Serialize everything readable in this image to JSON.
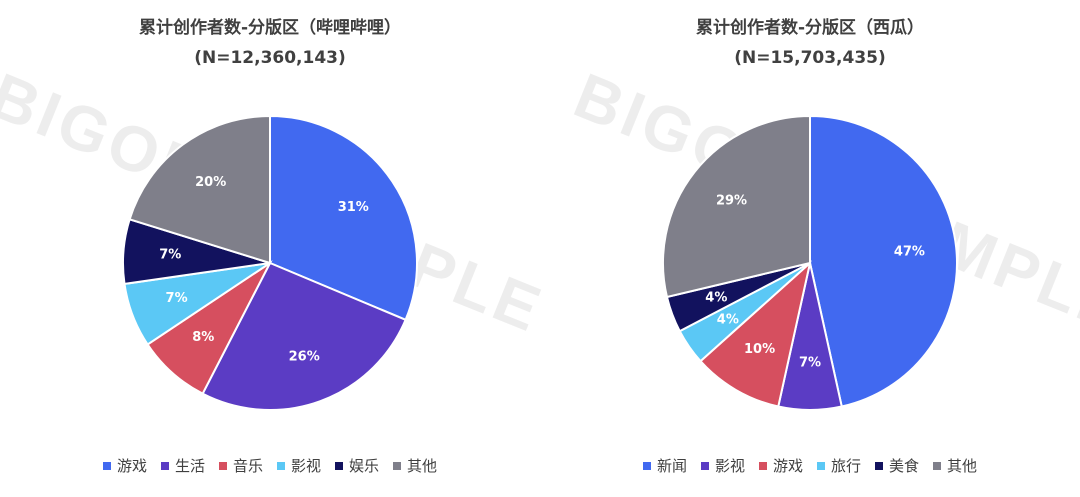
{
  "watermark_text": "BIGONE SAMPLE",
  "chart_data": [
    {
      "type": "pie",
      "title": "累计创作者数-分版区（哔哩哔哩）",
      "subtitle": "(N=12,360,143)",
      "labels": [
        "游戏",
        "生活",
        "音乐",
        "影视",
        "娱乐",
        "其他"
      ],
      "values": [
        31,
        26,
        8,
        7,
        7,
        20
      ],
      "value_labels": [
        "31%",
        "26%",
        "8%",
        "7%",
        "7%",
        "20%"
      ],
      "colors": [
        "#4169F0",
        "#5B3CC4",
        "#D64F5F",
        "#5BC8F5",
        "#12125E",
        "#7F7F8A"
      ],
      "start": "12 o'clock, clockwise",
      "legend_position": "bottom"
    },
    {
      "type": "pie",
      "title": "累计创作者数-分版区（西瓜）",
      "subtitle": "(N=15,703,435)",
      "labels": [
        "新闻",
        "影视",
        "游戏",
        "旅行",
        "美食",
        "其他"
      ],
      "values": [
        47,
        7,
        10,
        4,
        4,
        29
      ],
      "value_labels": [
        "47%",
        "7%",
        "10%",
        "4%",
        "4%",
        "29%"
      ],
      "colors": [
        "#4169F0",
        "#5B3CC4",
        "#D64F5F",
        "#5BC8F5",
        "#12125E",
        "#7F7F8A"
      ],
      "start": "12 o'clock, clockwise",
      "legend_position": "bottom"
    }
  ]
}
